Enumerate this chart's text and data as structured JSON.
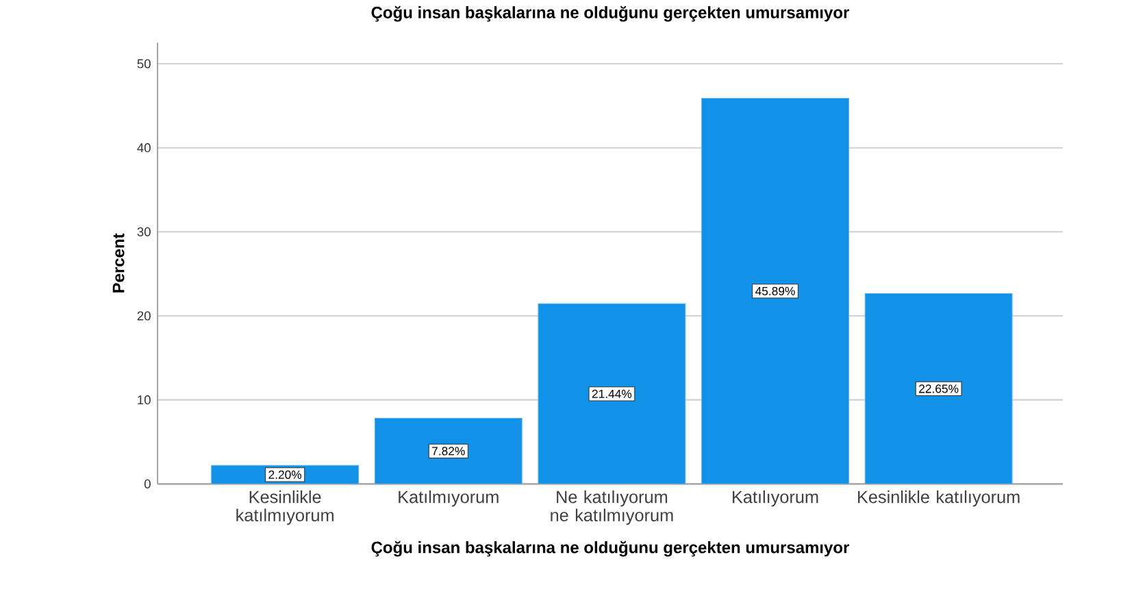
{
  "chart_data": {
    "type": "bar",
    "title": "Çoğu insan başkalarına ne olduğunu gerçekten umursamıyor",
    "xlabel": "Çoğu insan başkalarına ne olduğunu gerçekten umursamıyor",
    "ylabel": "Percent",
    "categories": [
      "Kesinlikle katılmıyorum",
      "Katılmıyorum",
      "Ne katılıyorum ne katılmıyorum",
      "Katılıyorum",
      "Kesinlikle katılıyorum"
    ],
    "values": [
      2.2,
      7.82,
      21.44,
      45.89,
      22.65
    ],
    "value_labels": [
      "2.20%",
      "7.82%",
      "21.44%",
      "45.89%",
      "22.65%"
    ],
    "color": "#1192e8",
    "ylim": [
      0,
      52.5
    ],
    "yticks": [
      0,
      10,
      20,
      30,
      40,
      50
    ],
    "grid": "y"
  }
}
